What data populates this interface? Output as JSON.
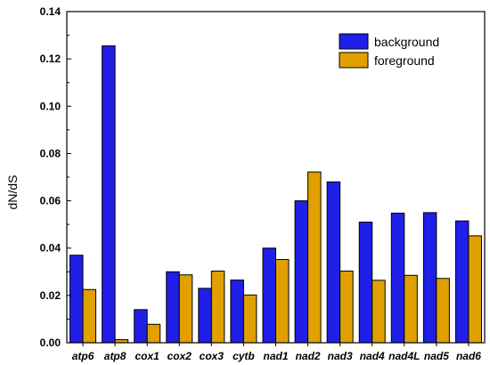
{
  "chart_data": {
    "type": "bar",
    "ylabel": "dN/dS",
    "xlabel": "",
    "ylim": [
      0,
      0.14
    ],
    "yticks": [
      "0.00",
      "0.02",
      "0.04",
      "0.06",
      "0.08",
      "0.10",
      "0.12",
      "0.14"
    ],
    "categories": [
      "atp6",
      "atp8",
      "cox1",
      "cox2",
      "cox3",
      "cytb",
      "nad1",
      "nad2",
      "nad3",
      "nad4",
      "nad4L",
      "nad5",
      "nad6"
    ],
    "series": [
      {
        "name": "background",
        "color": "#1f1fe8",
        "values": [
          0.037,
          0.1255,
          0.014,
          0.03,
          0.023,
          0.0265,
          0.04,
          0.06,
          0.068,
          0.051,
          0.0548,
          0.055,
          0.0515
        ]
      },
      {
        "name": "foreground",
        "color": "#e0a000",
        "values": [
          0.0225,
          0.0013,
          0.0078,
          0.0287,
          0.0303,
          0.0202,
          0.0352,
          0.0722,
          0.0303,
          0.0264,
          0.0285,
          0.0272,
          0.0452
        ]
      }
    ],
    "legend_position": "top-right",
    "grid": false
  }
}
